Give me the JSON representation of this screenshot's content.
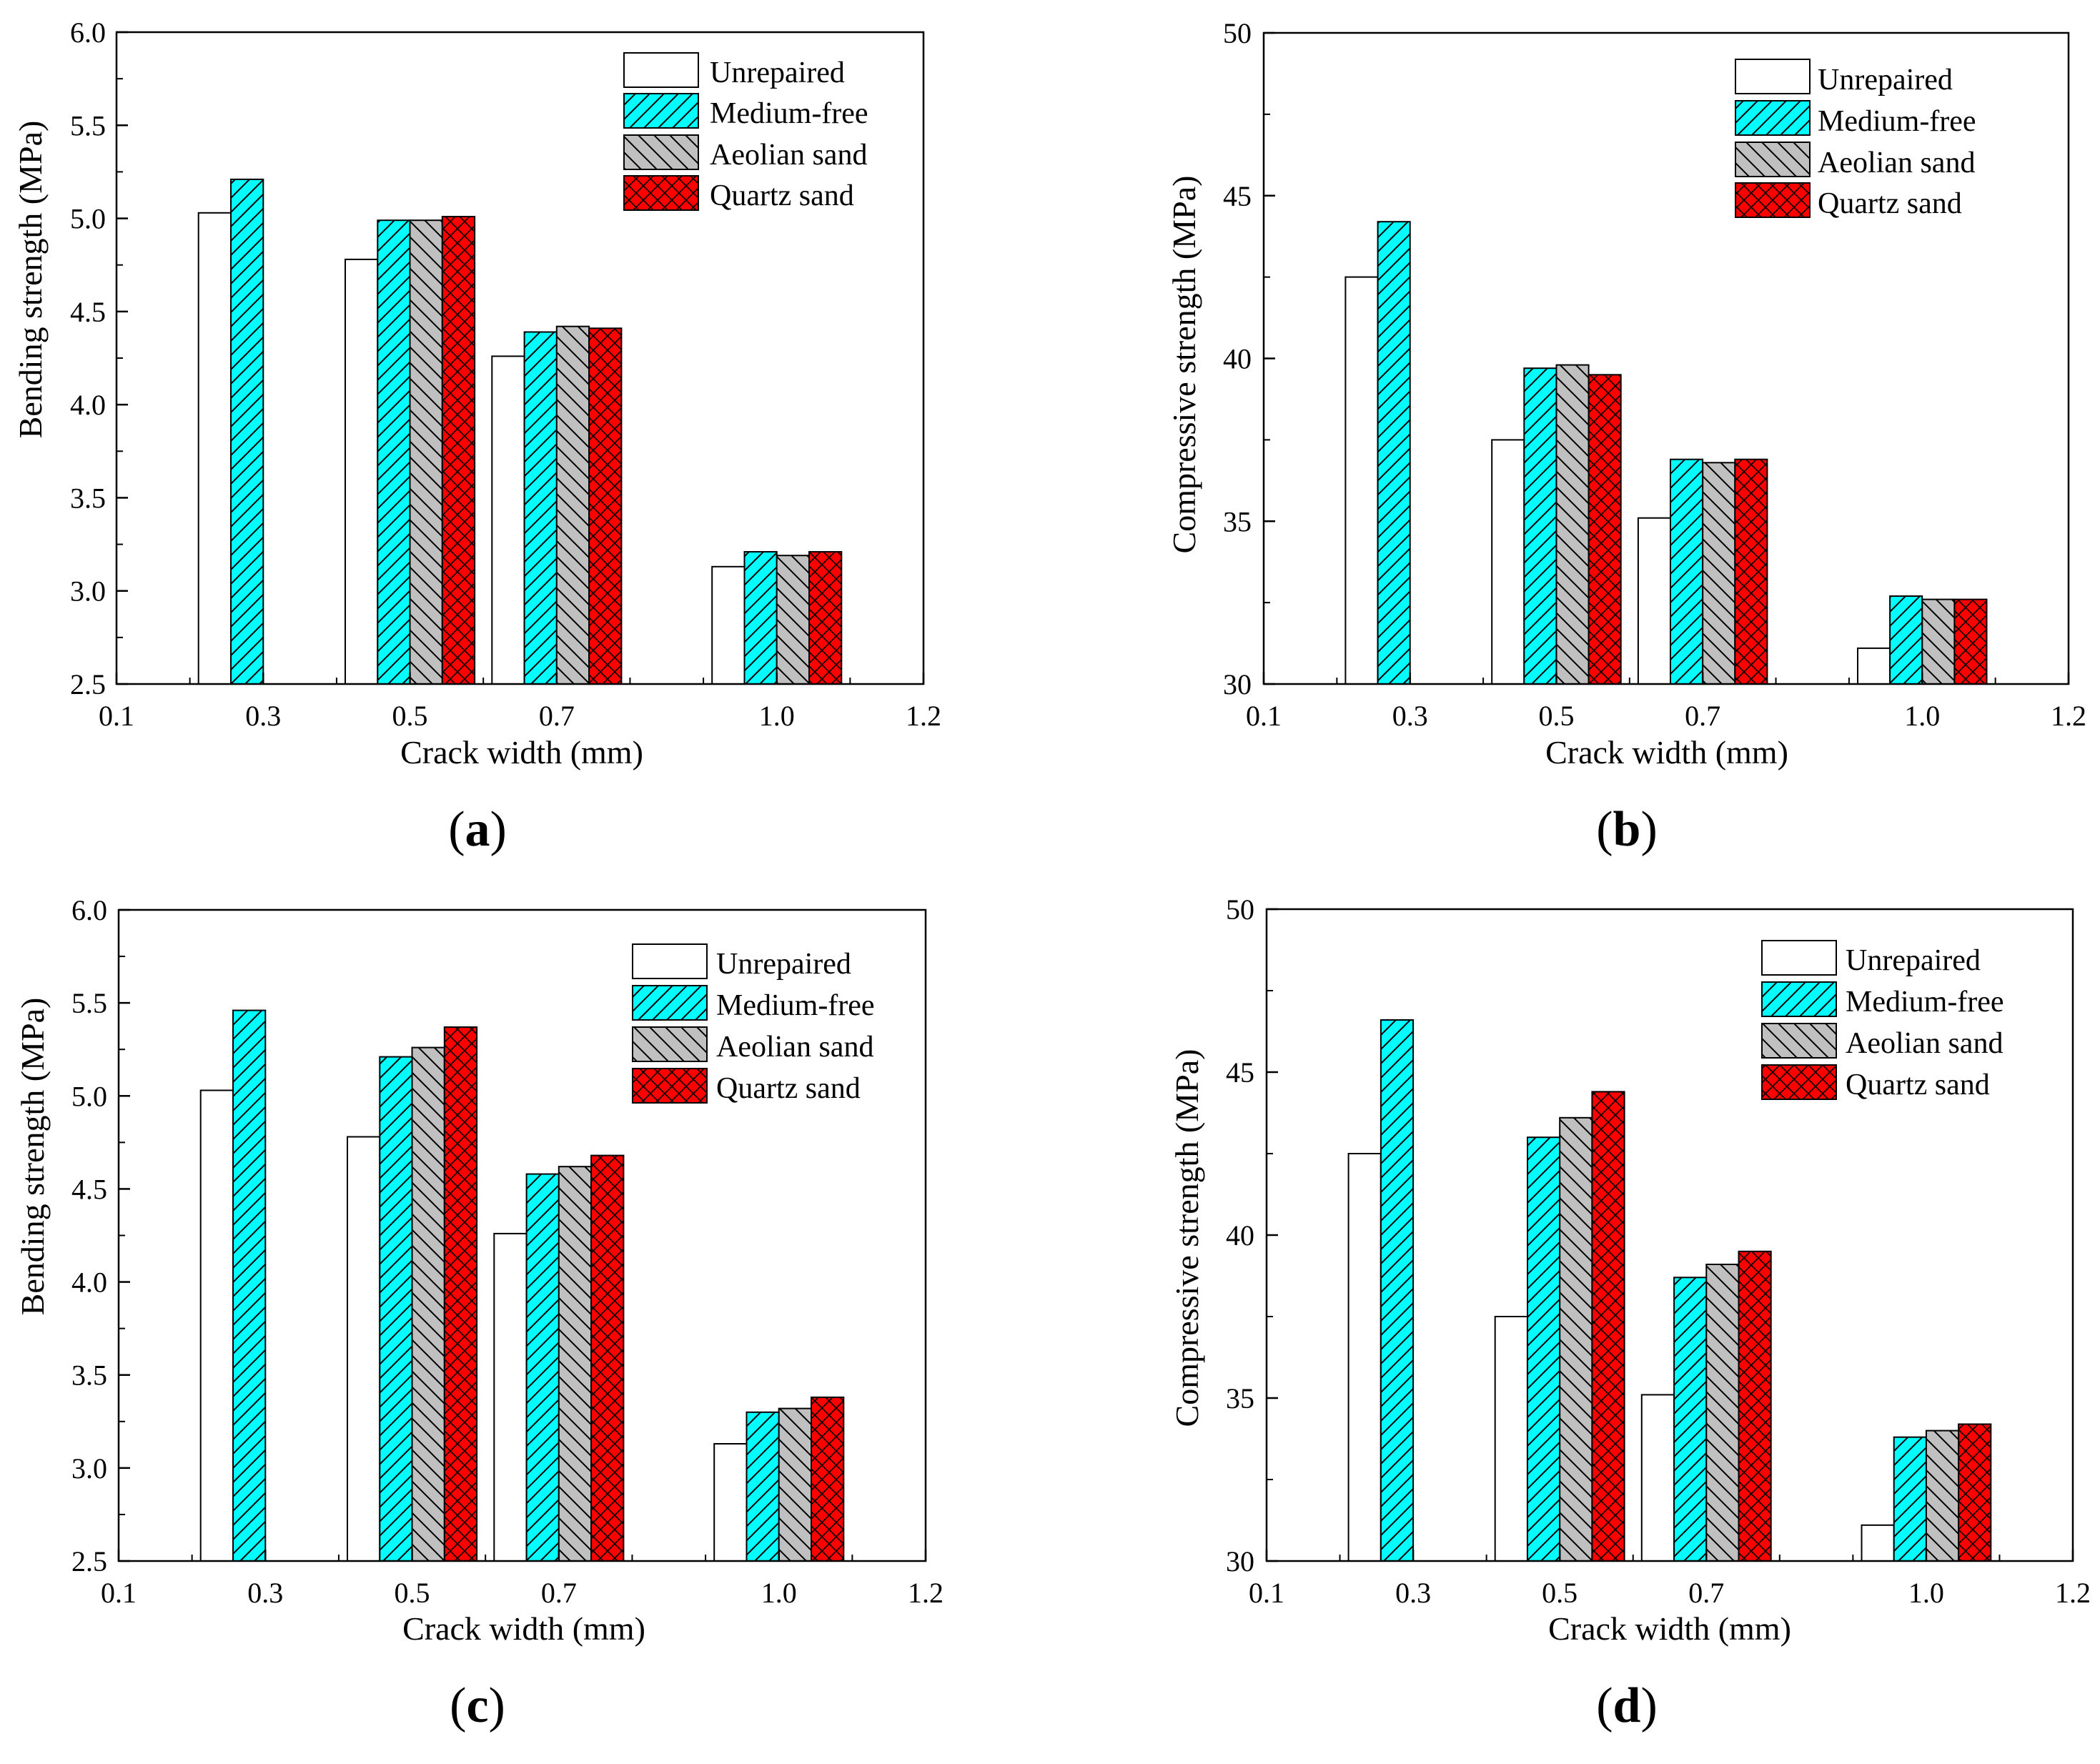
{
  "chart_data": [
    {
      "type": "bar",
      "panel_label": "a",
      "xlabel": "Crack width (mm)",
      "ylabel": "Bending strength (MPa)",
      "xlim": [
        0.1,
        1.2
      ],
      "ylim": [
        2.5,
        6.0
      ],
      "xticks": [
        "0.1",
        "0.3",
        "0.5",
        "0.7",
        "1.0",
        "1.2"
      ],
      "yticks": [
        "2.5",
        "3.0",
        "3.5",
        "4.0",
        "4.5",
        "5.0",
        "5.5",
        "6.0"
      ],
      "categories": [
        0.3,
        0.5,
        0.7,
        1.0
      ],
      "series": [
        {
          "name": "Unrepaired",
          "values": [
            5.03,
            4.78,
            4.26,
            3.13
          ]
        },
        {
          "name": "Medium-free",
          "values": [
            5.21,
            4.99,
            4.39,
            3.21
          ]
        },
        {
          "name": "Aeolian sand",
          "values": [
            null,
            4.99,
            4.42,
            3.19
          ]
        },
        {
          "name": "Quartz sand",
          "values": [
            null,
            5.01,
            4.41,
            3.21
          ]
        }
      ]
    },
    {
      "type": "bar",
      "panel_label": "b",
      "xlabel": "Crack width (mm)",
      "ylabel": "Compressive strength (MPa)",
      "xlim": [
        0.1,
        1.2
      ],
      "ylim": [
        30,
        50
      ],
      "xticks": [
        "0.1",
        "0.3",
        "0.5",
        "0.7",
        "1.0",
        "1.2"
      ],
      "yticks": [
        "30",
        "35",
        "40",
        "45",
        "50"
      ],
      "categories": [
        0.3,
        0.5,
        0.7,
        1.0
      ],
      "series": [
        {
          "name": "Unrepaired",
          "values": [
            42.5,
            37.5,
            35.1,
            31.1
          ]
        },
        {
          "name": "Medium-free",
          "values": [
            44.2,
            39.7,
            36.9,
            32.7
          ]
        },
        {
          "name": "Aeolian sand",
          "values": [
            null,
            39.8,
            36.8,
            32.6
          ]
        },
        {
          "name": "Quartz sand",
          "values": [
            null,
            39.5,
            36.9,
            32.6
          ]
        }
      ]
    },
    {
      "type": "bar",
      "panel_label": "c",
      "xlabel": "Crack width (mm)",
      "ylabel": "Bending strength (MPa)",
      "xlim": [
        0.1,
        1.2
      ],
      "ylim": [
        2.5,
        6.0
      ],
      "xticks": [
        "0.1",
        "0.3",
        "0.5",
        "0.7",
        "1.0",
        "1.2"
      ],
      "yticks": [
        "2.5",
        "3.0",
        "3.5",
        "4.0",
        "4.5",
        "5.0",
        "5.5",
        "6.0"
      ],
      "categories": [
        0.3,
        0.5,
        0.7,
        1.0
      ],
      "series": [
        {
          "name": "Unrepaired",
          "values": [
            5.03,
            4.78,
            4.26,
            3.13
          ]
        },
        {
          "name": "Medium-free",
          "values": [
            5.46,
            5.21,
            4.58,
            3.3
          ]
        },
        {
          "name": "Aeolian sand",
          "values": [
            null,
            5.26,
            4.62,
            3.32
          ]
        },
        {
          "name": "Quartz sand",
          "values": [
            null,
            5.37,
            4.68,
            3.38
          ]
        }
      ]
    },
    {
      "type": "bar",
      "panel_label": "d",
      "xlabel": "Crack width (mm)",
      "ylabel": "Compressive strength (MPa)",
      "xlim": [
        0.1,
        1.2
      ],
      "ylim": [
        30,
        50
      ],
      "xticks": [
        "0.1",
        "0.3",
        "0.5",
        "0.7",
        "1.0",
        "1.2"
      ],
      "yticks": [
        "30",
        "35",
        "40",
        "45",
        "50"
      ],
      "categories": [
        0.3,
        0.5,
        0.7,
        1.0
      ],
      "series": [
        {
          "name": "Unrepaired",
          "values": [
            42.5,
            37.5,
            35.1,
            31.1
          ]
        },
        {
          "name": "Medium-free",
          "values": [
            46.6,
            43.0,
            38.7,
            33.8
          ]
        },
        {
          "name": "Aeolian sand",
          "values": [
            null,
            43.6,
            39.1,
            34.0
          ]
        },
        {
          "name": "Quartz sand",
          "values": [
            null,
            44.4,
            39.5,
            34.2
          ]
        }
      ]
    }
  ],
  "colors": {
    "unrepaired": "#ffffff",
    "medium_free": "#00ffff",
    "aeolian_sand": "#c0c0c0",
    "quartz_sand": "#ff0000",
    "outline": "#000000"
  }
}
